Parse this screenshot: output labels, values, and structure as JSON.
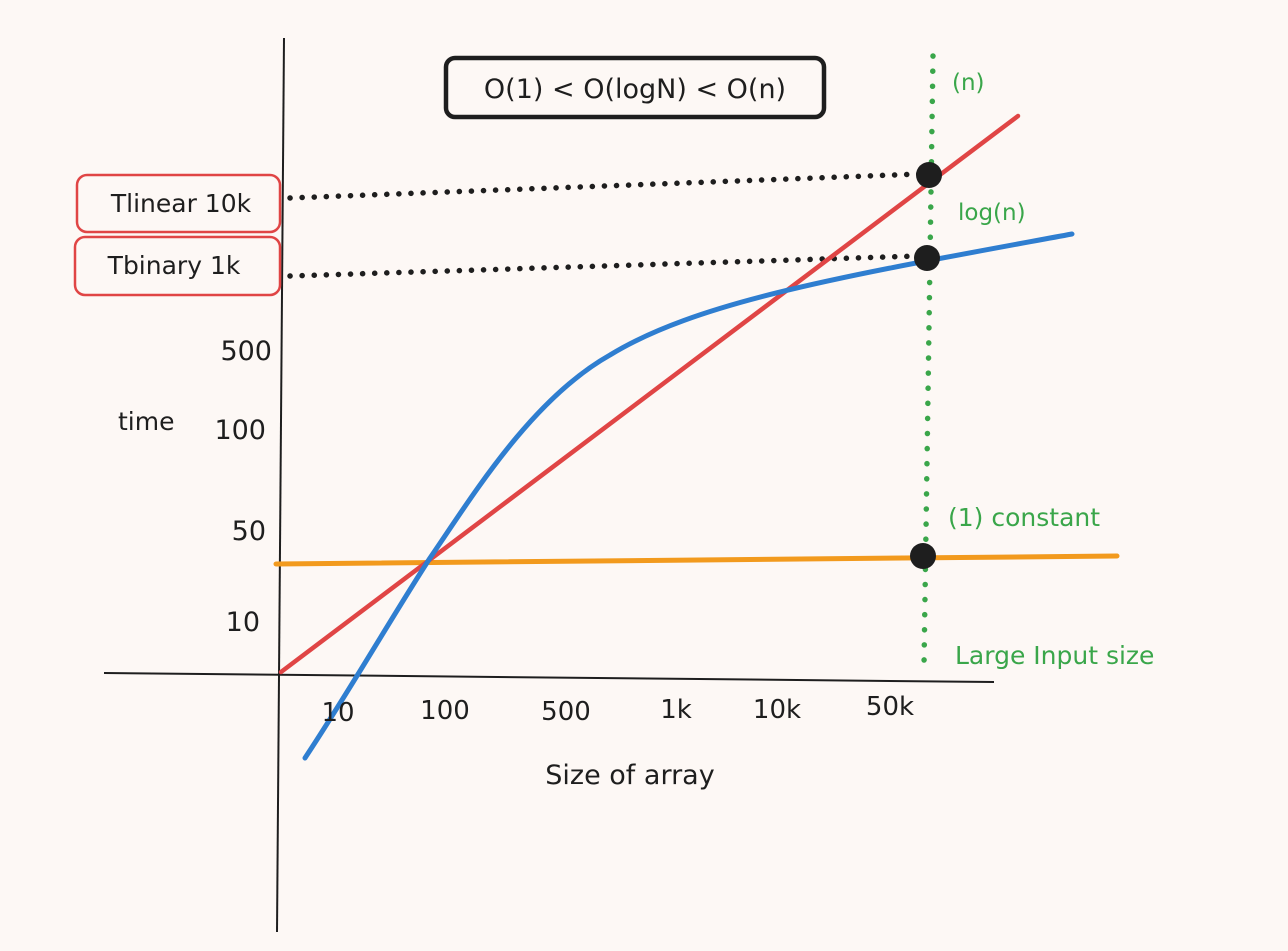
{
  "title": "O(1) < O(logN) < O(n)",
  "axes": {
    "x_label": "Size of array",
    "y_label": "time",
    "x_ticks": [
      "10",
      "100",
      "500",
      "1k",
      "10k",
      "50k"
    ],
    "y_ticks": [
      "10",
      "50",
      "100",
      "500"
    ]
  },
  "curves": {
    "linear": {
      "label": "(n)",
      "color": "#e04545"
    },
    "log": {
      "label": "log(n)",
      "color": "#2f7ed0"
    },
    "constant": {
      "label": "(1) constant",
      "color": "#f29a1d"
    }
  },
  "marker": {
    "label": "Large Input size",
    "color": "#3aa64a"
  },
  "callouts": {
    "linear": "Tlinear 10k",
    "binary": "Tbinary  1k"
  },
  "colors": {
    "background": "#fdf8f5",
    "ink": "#1e1e1e",
    "callout_border": "#e04545"
  }
}
